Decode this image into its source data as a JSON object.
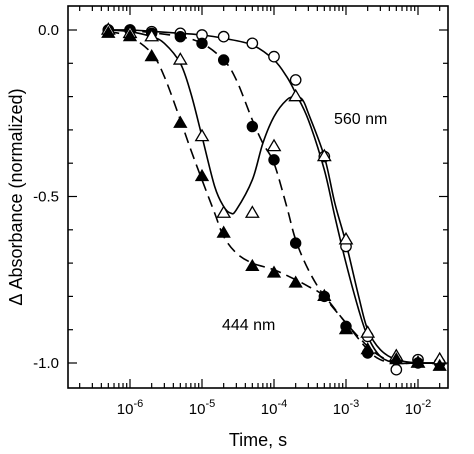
{
  "chart_data": {
    "type": "scatter",
    "title": "",
    "xlabel": "Time, s",
    "ylabel": "Δ Absorbance (normalized)",
    "xscale": "log",
    "xlim": [
      1e-07,
      0.05
    ],
    "ylim": [
      -1.1,
      0.05
    ],
    "grid": false,
    "legend": "none",
    "x_ticks": [
      {
        "value": 1e-06,
        "base": "10",
        "exp": "-6"
      },
      {
        "value": 1e-05,
        "base": "10",
        "exp": "-5"
      },
      {
        "value": 0.0001,
        "base": "10",
        "exp": "-4"
      },
      {
        "value": 0.001,
        "base": "10",
        "exp": "-3"
      },
      {
        "value": 0.01,
        "base": "10",
        "exp": "-2"
      }
    ],
    "y_ticks": [
      {
        "value": 0,
        "label": "0.0"
      },
      {
        "value": -0.5,
        "label": "-0.5"
      },
      {
        "value": -1,
        "label": "-1.0"
      }
    ],
    "annotations": [
      {
        "text": "560 nm",
        "x": 0.003,
        "y": -0.26
      },
      {
        "text": "444 nm",
        "x": 0.0006,
        "y": -0.92
      }
    ],
    "series": [
      {
        "marker": "open-circle",
        "line": "solid",
        "points": [
          [
            5e-07,
            0.0
          ],
          [
            1e-06,
            0.0
          ],
          [
            2e-06,
            -0.005
          ],
          [
            5e-06,
            -0.01
          ],
          [
            1e-05,
            -0.015
          ],
          [
            2e-05,
            -0.02
          ],
          [
            5e-05,
            -0.04
          ],
          [
            0.0001,
            -0.08
          ],
          [
            0.0002,
            -0.15
          ],
          [
            0.0005,
            -0.38
          ],
          [
            0.001,
            -0.65
          ],
          [
            0.002,
            -0.92
          ],
          [
            0.005,
            -1.02
          ],
          [
            0.01,
            -0.99
          ],
          [
            0.02,
            -1.0
          ]
        ],
        "fit": [
          [
            5e-07,
            0.0
          ],
          [
            1e-06,
            0.0
          ],
          [
            2e-06,
            -0.004
          ],
          [
            5e-06,
            -0.01
          ],
          [
            1e-05,
            -0.015
          ],
          [
            2e-05,
            -0.025
          ],
          [
            5e-05,
            -0.045
          ],
          [
            0.0001,
            -0.09
          ],
          [
            0.00015,
            -0.14
          ],
          [
            0.0002,
            -0.19
          ],
          [
            0.0003,
            -0.27
          ],
          [
            0.0005,
            -0.42
          ],
          [
            0.0007,
            -0.56
          ],
          [
            0.001,
            -0.7
          ],
          [
            0.0015,
            -0.84
          ],
          [
            0.002,
            -0.92
          ],
          [
            0.003,
            -0.98
          ],
          [
            0.005,
            -1.0
          ],
          [
            0.01,
            -1.0
          ],
          [
            0.02,
            -1.0
          ]
        ]
      },
      {
        "marker": "filled-circle",
        "line": "dashed",
        "points": [
          [
            5e-07,
            0.0
          ],
          [
            1e-06,
            0.0
          ],
          [
            2e-06,
            -0.01
          ],
          [
            5e-06,
            -0.02
          ],
          [
            1e-05,
            -0.04
          ],
          [
            2e-05,
            -0.09
          ],
          [
            5e-05,
            -0.29
          ],
          [
            0.0001,
            -0.39
          ],
          [
            0.0002,
            -0.64
          ],
          [
            0.0005,
            -0.8
          ],
          [
            0.001,
            -0.89
          ],
          [
            0.002,
            -0.97
          ],
          [
            0.005,
            -0.99
          ],
          [
            0.01,
            -1.0
          ],
          [
            0.02,
            -1.0
          ]
        ],
        "fit": [
          [
            5e-07,
            0.0
          ],
          [
            1e-06,
            -0.002
          ],
          [
            2e-06,
            -0.008
          ],
          [
            5e-06,
            -0.02
          ],
          [
            1e-05,
            -0.04
          ],
          [
            2e-05,
            -0.09
          ],
          [
            3e-05,
            -0.15
          ],
          [
            5e-05,
            -0.27
          ],
          [
            7e-05,
            -0.34
          ],
          [
            0.0001,
            -0.4
          ],
          [
            0.00015,
            -0.53
          ],
          [
            0.0002,
            -0.63
          ],
          [
            0.0003,
            -0.72
          ],
          [
            0.0005,
            -0.8
          ],
          [
            0.001,
            -0.88
          ],
          [
            0.002,
            -0.96
          ],
          [
            0.003,
            -0.99
          ],
          [
            0.005,
            -1.0
          ],
          [
            0.01,
            -1.0
          ],
          [
            0.02,
            -1.0
          ]
        ]
      },
      {
        "marker": "open-triangle",
        "line": "solid",
        "points": [
          [
            5e-07,
            0.0
          ],
          [
            1e-06,
            -0.01
          ],
          [
            2e-06,
            -0.02
          ],
          [
            5e-06,
            -0.09
          ],
          [
            1e-05,
            -0.32
          ],
          [
            2e-05,
            -0.55
          ],
          [
            5e-05,
            -0.55
          ],
          [
            0.0001,
            -0.35
          ],
          [
            0.0002,
            -0.2
          ],
          [
            0.0005,
            -0.38
          ],
          [
            0.001,
            -0.63
          ],
          [
            0.002,
            -0.91
          ],
          [
            0.005,
            -0.98
          ],
          [
            0.01,
            -1.0
          ],
          [
            0.02,
            -0.99
          ]
        ],
        "fit": [
          [
            5e-07,
            0.0
          ],
          [
            1e-06,
            -0.005
          ],
          [
            2e-06,
            -0.02
          ],
          [
            3e-06,
            -0.04
          ],
          [
            5e-06,
            -0.1
          ],
          [
            7e-06,
            -0.19
          ],
          [
            1e-05,
            -0.32
          ],
          [
            1.5e-05,
            -0.47
          ],
          [
            2e-05,
            -0.53
          ],
          [
            2.5e-05,
            -0.55
          ],
          [
            3e-05,
            -0.54
          ],
          [
            5e-05,
            -0.45
          ],
          [
            7e-05,
            -0.34
          ],
          [
            0.0001,
            -0.26
          ],
          [
            0.00015,
            -0.21
          ],
          [
            0.0002,
            -0.2
          ],
          [
            0.00025,
            -0.21
          ],
          [
            0.0003,
            -0.25
          ],
          [
            0.0005,
            -0.38
          ],
          [
            0.0007,
            -0.52
          ],
          [
            0.001,
            -0.64
          ],
          [
            0.0015,
            -0.8
          ],
          [
            0.002,
            -0.9
          ],
          [
            0.003,
            -0.96
          ],
          [
            0.005,
            -0.99
          ],
          [
            0.01,
            -1.0
          ],
          [
            0.02,
            -1.0
          ]
        ]
      },
      {
        "marker": "filled-triangle",
        "line": "dashed",
        "points": [
          [
            5e-07,
            -0.01
          ],
          [
            1e-06,
            -0.02
          ],
          [
            2e-06,
            -0.08
          ],
          [
            5e-06,
            -0.28
          ],
          [
            1e-05,
            -0.44
          ],
          [
            2e-05,
            -0.61
          ],
          [
            5e-05,
            -0.71
          ],
          [
            0.0001,
            -0.73
          ],
          [
            0.0002,
            -0.76
          ],
          [
            0.0005,
            -0.8
          ],
          [
            0.001,
            -0.9
          ],
          [
            0.002,
            -0.96
          ],
          [
            0.005,
            -0.99
          ],
          [
            0.01,
            -1.0
          ],
          [
            0.02,
            -1.01
          ]
        ],
        "fit": [
          [
            5e-07,
            -0.005
          ],
          [
            1e-06,
            -0.02
          ],
          [
            2e-06,
            -0.07
          ],
          [
            3e-06,
            -0.14
          ],
          [
            5e-06,
            -0.27
          ],
          [
            7e-06,
            -0.36
          ],
          [
            1e-05,
            -0.45
          ],
          [
            1.5e-05,
            -0.55
          ],
          [
            2e-05,
            -0.62
          ],
          [
            3e-05,
            -0.67
          ],
          [
            5e-05,
            -0.7
          ],
          [
            0.0001,
            -0.72
          ],
          [
            0.0002,
            -0.75
          ],
          [
            0.0003,
            -0.77
          ],
          [
            0.0005,
            -0.8
          ],
          [
            0.001,
            -0.88
          ],
          [
            0.002,
            -0.95
          ],
          [
            0.003,
            -0.98
          ],
          [
            0.005,
            -1.0
          ],
          [
            0.01,
            -1.0
          ],
          [
            0.02,
            -1.0
          ]
        ]
      }
    ]
  }
}
